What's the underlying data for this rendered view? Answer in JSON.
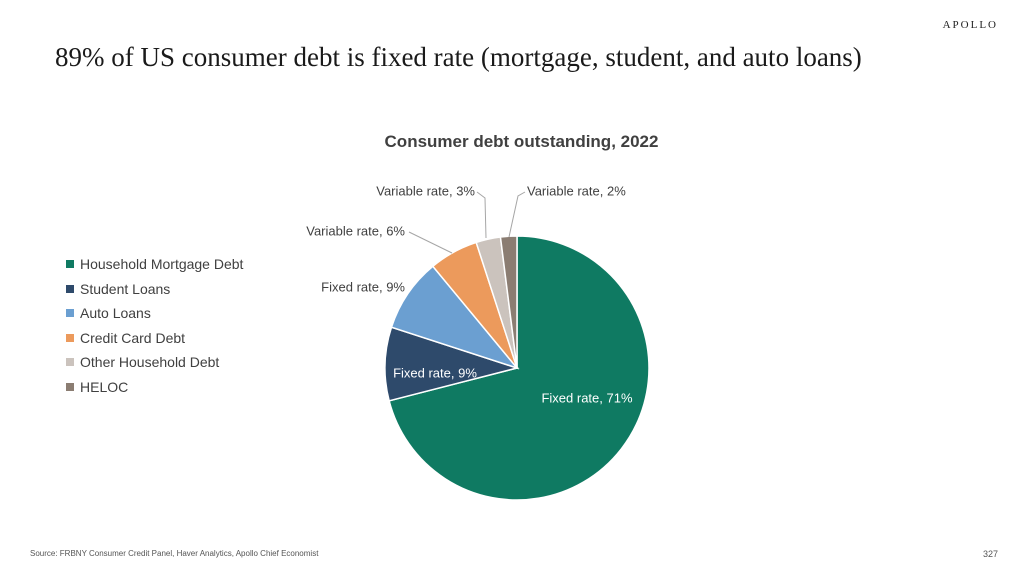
{
  "brand": "APOLLO",
  "headline": "89% of US consumer debt is fixed rate (mortgage, student, and auto loans)",
  "footer": {
    "source": "Source: FRBNY Consumer Credit Panel, Haver Analytics, Apollo Chief Economist",
    "page_number": "327"
  },
  "legend": [
    {
      "label": "Household Mortgage Debt",
      "color": "#0f7a62"
    },
    {
      "label": "Student Loans",
      "color": "#2e4a6b"
    },
    {
      "label": "Auto Loans",
      "color": "#6b9fd1"
    },
    {
      "label": "Credit Card Debt",
      "color": "#ec9a5c"
    },
    {
      "label": "Other Household Debt",
      "color": "#cbc3bd"
    },
    {
      "label": "HELOC",
      "color": "#8b7d72"
    }
  ],
  "chart_data": {
    "type": "pie",
    "title": "Consumer debt outstanding, 2022",
    "legend_position": "left",
    "slices": [
      {
        "category": "Household Mortgage Debt",
        "label": "Fixed rate, 71%",
        "value": 71,
        "color": "#0f7a62"
      },
      {
        "category": "Student Loans",
        "label": "Fixed rate, 9%",
        "value": 9,
        "color": "#2e4a6b"
      },
      {
        "category": "Auto Loans",
        "label": "Fixed rate, 9%",
        "value": 9,
        "color": "#6b9fd1"
      },
      {
        "category": "Credit Card Debt",
        "label": "Variable rate, 6%",
        "value": 6,
        "color": "#ec9a5c"
      },
      {
        "category": "Other Household Debt",
        "label": "Variable rate, 3%",
        "value": 3,
        "color": "#cbc3bd"
      },
      {
        "category": "HELOC",
        "label": "Variable rate, 2%",
        "value": 2,
        "color": "#8b7d72"
      }
    ]
  }
}
